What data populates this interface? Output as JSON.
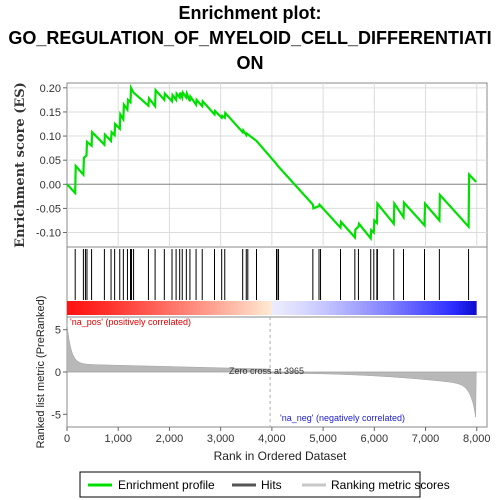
{
  "chart_data": {
    "type": "line",
    "title_lines": [
      "Enrichment plot:",
      "GO_REGULATION_OF_MYELOID_CELL_DIFFERENTIATI",
      "ON"
    ],
    "es_panel": {
      "ylabel": "Enrichment score (ES)",
      "ylim": [
        -0.13,
        0.21
      ],
      "yticks": [
        "0.20",
        "0.15",
        "0.10",
        "0.05",
        "0.00",
        "-0.05",
        "-0.10"
      ],
      "ytick_values": [
        0.2,
        0.15,
        0.1,
        0.05,
        0.0,
        -0.05,
        -0.1
      ],
      "grid": true,
      "series_color": "#00e000",
      "x": [
        0,
        160,
        170,
        320,
        330,
        380,
        390,
        480,
        490,
        730,
        740,
        860,
        870,
        930,
        940,
        1030,
        1040,
        1100,
        1110,
        1180,
        1190,
        1240,
        1250,
        1300,
        1590,
        1600,
        1720,
        1730,
        1900,
        1910,
        2050,
        2060,
        2130,
        2140,
        2200,
        2210,
        2250,
        2260,
        2330,
        2340,
        2400,
        2410,
        2520,
        2530,
        2640,
        2650,
        2880,
        2890,
        3020,
        3030,
        3080,
        3090,
        3430,
        3440,
        3500,
        3510,
        3700,
        4090,
        4100,
        4800,
        4810,
        4920,
        4930,
        5340,
        5350,
        5620,
        5630,
        5690,
        5700,
        5930,
        5940,
        5990,
        6000,
        6050,
        6060,
        6380,
        6390,
        6570,
        6580,
        6980,
        6990,
        7270,
        7280,
        7840,
        7850,
        7990
      ],
      "y": [
        0.0,
        -0.018,
        0.038,
        0.02,
        0.055,
        0.06,
        0.088,
        0.08,
        0.108,
        0.082,
        0.103,
        0.09,
        0.108,
        0.102,
        0.125,
        0.115,
        0.145,
        0.135,
        0.165,
        0.155,
        0.175,
        0.17,
        0.2,
        0.19,
        0.163,
        0.178,
        0.162,
        0.195,
        0.175,
        0.188,
        0.172,
        0.185,
        0.175,
        0.188,
        0.18,
        0.19,
        0.18,
        0.19,
        0.18,
        0.188,
        0.172,
        0.182,
        0.165,
        0.175,
        0.162,
        0.172,
        0.145,
        0.152,
        0.138,
        0.142,
        0.138,
        0.148,
        0.108,
        0.112,
        0.102,
        0.105,
        0.09,
        0.042,
        0.04,
        -0.042,
        -0.05,
        -0.045,
        -0.042,
        -0.09,
        -0.078,
        -0.11,
        -0.094,
        -0.088,
        -0.082,
        -0.112,
        -0.095,
        -0.1,
        -0.075,
        -0.08,
        -0.04,
        -0.082,
        -0.04,
        -0.068,
        -0.038,
        -0.085,
        -0.04,
        -0.075,
        -0.022,
        -0.088,
        0.02,
        0.005
      ]
    },
    "hits": [
      160,
      320,
      360,
      390,
      480,
      730,
      860,
      930,
      1030,
      1100,
      1180,
      1240,
      1260,
      1300,
      1590,
      1720,
      1900,
      2050,
      2130,
      2200,
      2250,
      2330,
      2400,
      2520,
      2640,
      2880,
      3020,
      3080,
      3430,
      3500,
      3530,
      3700,
      4090,
      4100,
      4130,
      4800,
      4920,
      4950,
      5340,
      5620,
      5690,
      5930,
      5990,
      6050,
      6060,
      6380,
      6570,
      6980,
      7270,
      7840
    ],
    "metric_panel": {
      "ylabel": "Ranked list metric (PreRanked)",
      "ylim": [
        -6.5,
        6.5
      ],
      "yticks": [
        "5",
        "0",
        "-5"
      ],
      "ytick_values": [
        5,
        0,
        -5
      ],
      "pos_label": "'na_pos' (positively correlated)",
      "neg_label": "'na_neg' (negatively correlated)",
      "zero_cross_label": "Zero cross at 3965",
      "zero_cross": 3965
    },
    "xaxis": {
      "label": "Rank in Ordered Dataset",
      "xlim": [
        0,
        8200
      ],
      "ticks": [
        "0",
        "1,000",
        "2,000",
        "3,000",
        "4,000",
        "5,000",
        "6,000",
        "7,000",
        "8,000"
      ],
      "tick_values": [
        0,
        1000,
        2000,
        3000,
        4000,
        5000,
        6000,
        7000,
        8000
      ],
      "n": 7990
    },
    "legend": {
      "items": [
        {
          "label": "Enrichment profile",
          "color": "#00e000"
        },
        {
          "label": "Hits",
          "color": "#555555"
        },
        {
          "label": "Ranking metric scores",
          "color": "#c8c8c8"
        }
      ]
    }
  }
}
